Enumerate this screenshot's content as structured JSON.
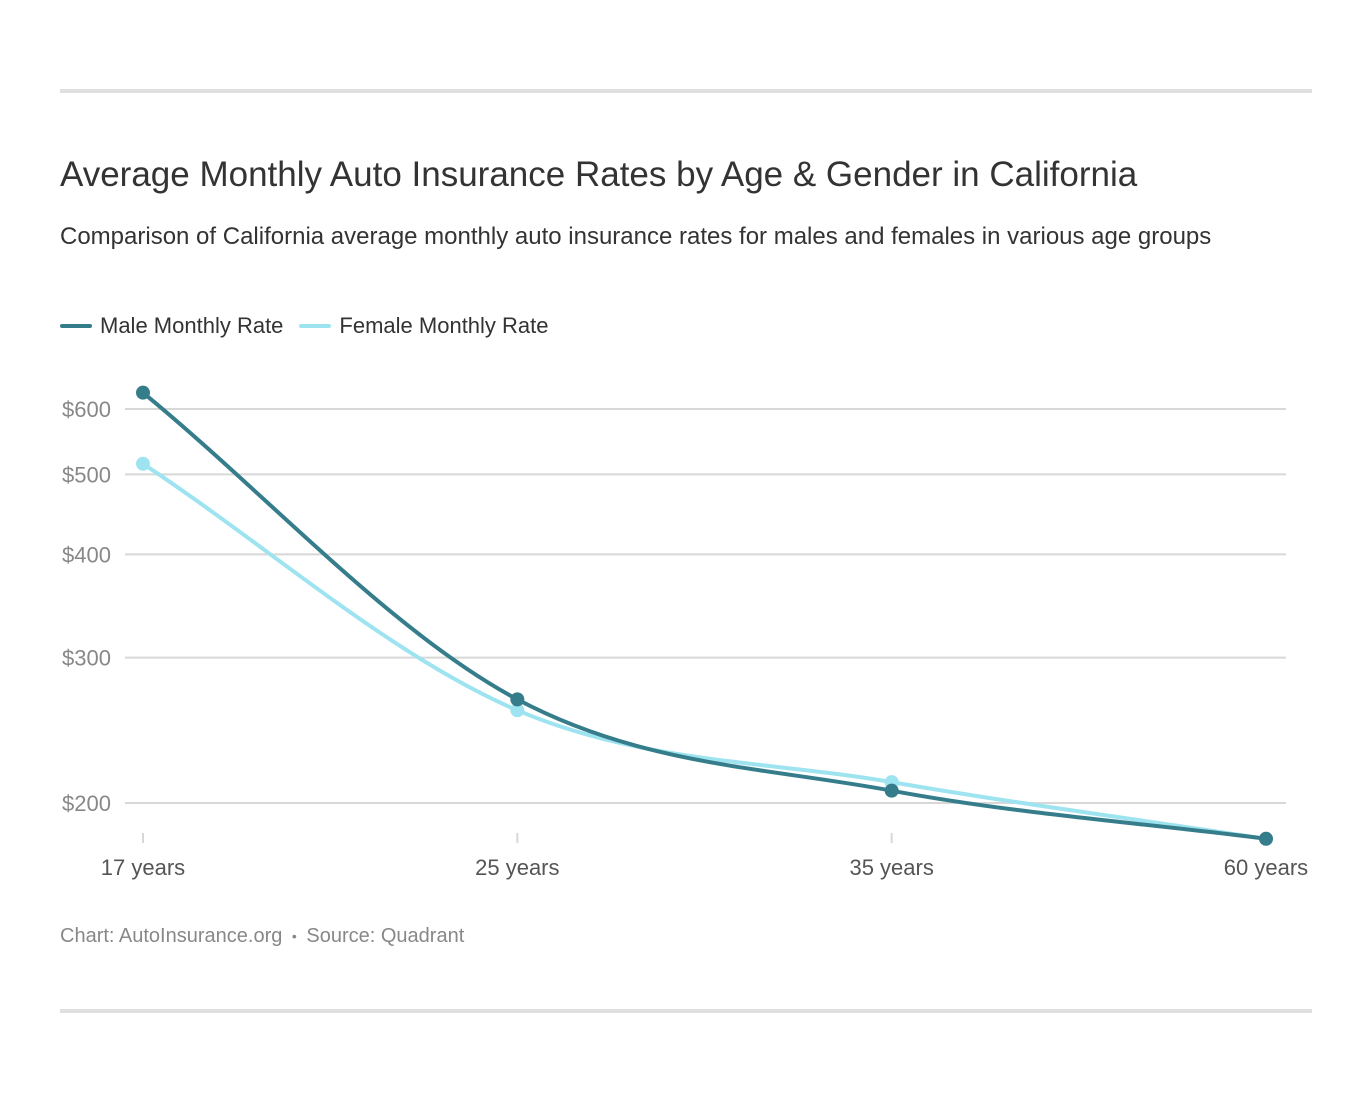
{
  "header": {
    "title": "Average Monthly Auto Insurance Rates by Age & Gender in California",
    "subtitle": "Comparison of California average monthly auto insurance rates for males and females in various age groups"
  },
  "footer": {
    "chart_credit": "Chart: AutoInsurance.org",
    "separator": "•",
    "source": "Source: Quadrant"
  },
  "colors": {
    "male": "#367d8b",
    "female": "#9ee3f0",
    "grid": "#d8d8d8",
    "axis_text": "#888888",
    "category_text": "#555555"
  },
  "chart_data": {
    "type": "line",
    "categories": [
      "17 years",
      "25 years",
      "35 years",
      "60 years"
    ],
    "series": [
      {
        "name": "Male Monthly Rate",
        "color_key": "male",
        "values": [
          628,
          267,
          207,
          181
        ]
      },
      {
        "name": "Female Monthly Rate",
        "color_key": "female",
        "values": [
          515,
          259,
          212,
          181
        ]
      }
    ],
    "yscale": "log",
    "yticks": [
      200,
      300,
      400,
      500,
      600
    ],
    "ytick_labels": [
      "$200",
      "$300",
      "$400",
      "$500",
      "$600"
    ],
    "grid": true,
    "legend_position": "top-left",
    "interpolation": "smooth"
  }
}
